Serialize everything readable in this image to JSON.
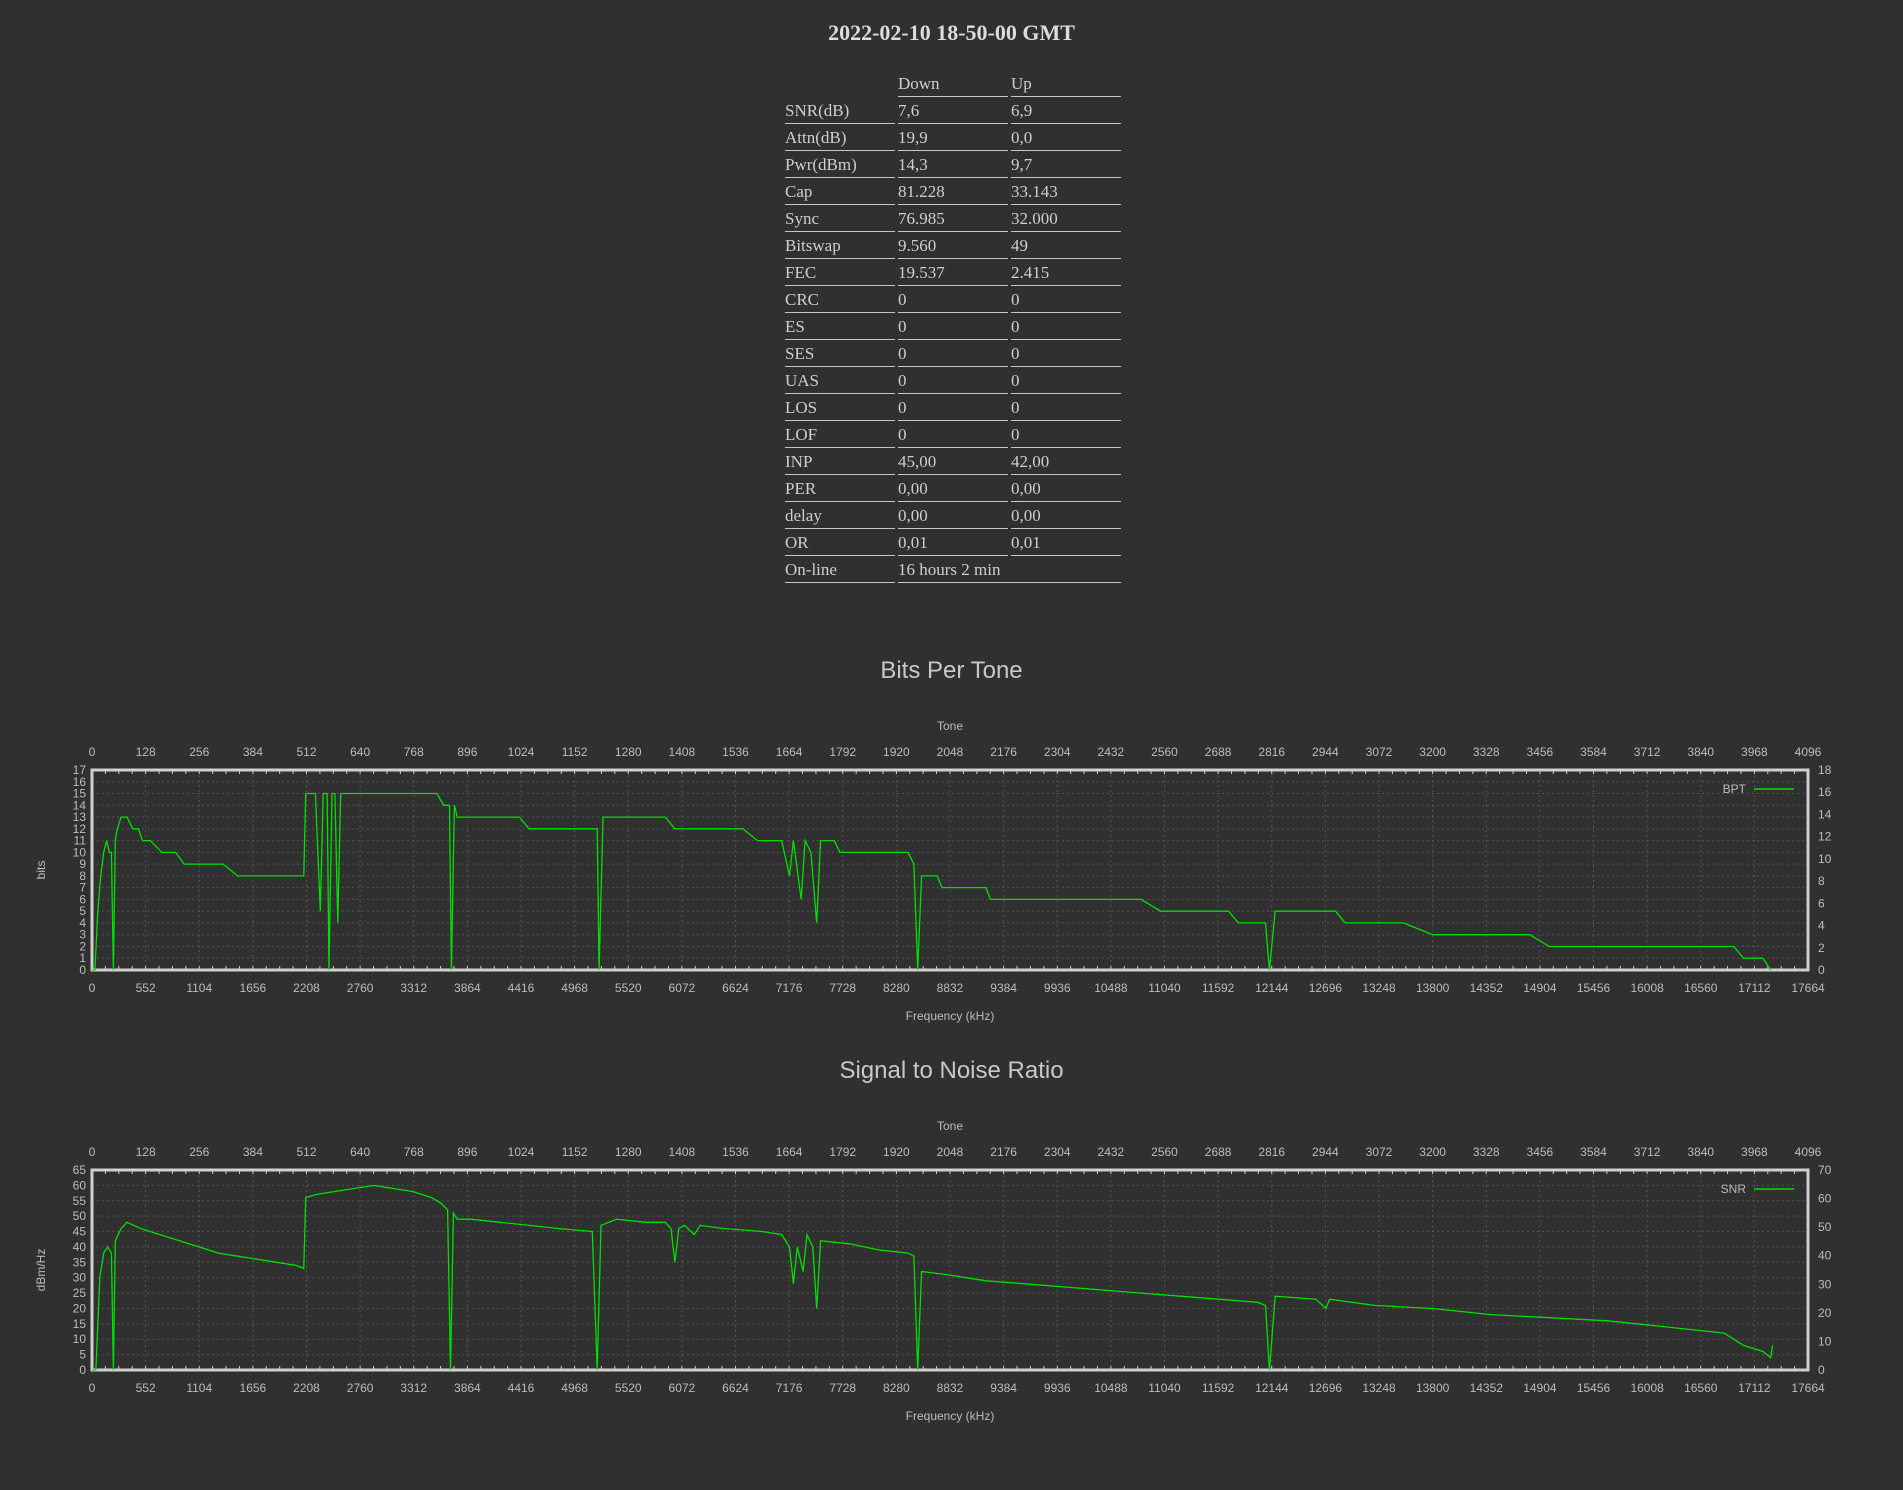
{
  "title": "2022-02-10 18-50-00 GMT",
  "stats": {
    "header": [
      "",
      "Down",
      "Up"
    ],
    "rows": [
      [
        "SNR(dB)",
        "7,6",
        "6,9"
      ],
      [
        "Attn(dB)",
        "19,9",
        "0,0"
      ],
      [
        "Pwr(dBm)",
        "14,3",
        "9,7"
      ],
      [
        "Cap",
        "81.228",
        "33.143"
      ],
      [
        "Sync",
        "76.985",
        "32.000"
      ],
      [
        "Bitswap",
        "9.560",
        "49"
      ],
      [
        "FEC",
        "19.537",
        "2.415"
      ],
      [
        "CRC",
        "0",
        "0"
      ],
      [
        "ES",
        "0",
        "0"
      ],
      [
        "SES",
        "0",
        "0"
      ],
      [
        "UAS",
        "0",
        "0"
      ],
      [
        "LOS",
        "0",
        "0"
      ],
      [
        "LOF",
        "0",
        "0"
      ],
      [
        "INP",
        "45,00",
        "42,00"
      ],
      [
        "PER",
        "0,00",
        "0,00"
      ],
      [
        "delay",
        "0,00",
        "0,00"
      ],
      [
        "OR",
        "0,01",
        "0,01"
      ]
    ],
    "online": [
      "On-line",
      "16 hours 2 min"
    ]
  },
  "line_color": "#00e000",
  "chart_data": [
    {
      "type": "line",
      "title": "Bits Per Tone",
      "top_axis_label": "Tone",
      "top_ticks": [
        0,
        128,
        256,
        384,
        512,
        640,
        768,
        896,
        1024,
        1152,
        1280,
        1408,
        1536,
        1664,
        1792,
        1920,
        2048,
        2176,
        2304,
        2432,
        2560,
        2688,
        2816,
        2944,
        3072,
        3200,
        3328,
        3456,
        3584,
        3712,
        3840,
        3968,
        4096
      ],
      "xlabel": "Frequency (kHz)",
      "x_ticks": [
        0,
        552,
        1104,
        1656,
        2208,
        2760,
        3312,
        3864,
        4416,
        4968,
        5520,
        6072,
        6624,
        7176,
        7728,
        8280,
        8832,
        9384,
        9936,
        10488,
        11040,
        11592,
        12144,
        12696,
        13248,
        13800,
        14352,
        14904,
        15456,
        16008,
        16560,
        17112,
        17664
      ],
      "xlim": [
        0,
        17664
      ],
      "ylabel": "bits",
      "ylim": [
        0,
        17
      ],
      "y_ticks": [
        0,
        1,
        2,
        3,
        4,
        5,
        6,
        7,
        8,
        9,
        10,
        11,
        12,
        13,
        14,
        15,
        16,
        17
      ],
      "y2lim": [
        0,
        18
      ],
      "y2_ticks": [
        0,
        2,
        4,
        6,
        8,
        10,
        12,
        14,
        16,
        18
      ],
      "legend": "top-right",
      "series": [
        {
          "name": "BPT",
          "points": [
            [
              0,
              0
            ],
            [
              30,
              0
            ],
            [
              60,
              5
            ],
            [
              90,
              8
            ],
            [
              120,
              10
            ],
            [
              150,
              11
            ],
            [
              180,
              10
            ],
            [
              200,
              10
            ],
            [
              220,
              0
            ],
            [
              240,
              11
            ],
            [
              260,
              12
            ],
            [
              300,
              13
            ],
            [
              360,
              13
            ],
            [
              420,
              12
            ],
            [
              480,
              12
            ],
            [
              520,
              11
            ],
            [
              600,
              11
            ],
            [
              720,
              10
            ],
            [
              860,
              10
            ],
            [
              950,
              9
            ],
            [
              1100,
              9
            ],
            [
              1200,
              9
            ],
            [
              1350,
              9
            ],
            [
              1500,
              8
            ],
            [
              1650,
              8
            ],
            [
              1800,
              8
            ],
            [
              1950,
              8
            ],
            [
              2100,
              8
            ],
            [
              2180,
              8
            ],
            [
              2200,
              15
            ],
            [
              2300,
              15
            ],
            [
              2350,
              5
            ],
            [
              2380,
              15
            ],
            [
              2420,
              15
            ],
            [
              2440,
              0
            ],
            [
              2470,
              15
            ],
            [
              2500,
              15
            ],
            [
              2530,
              4
            ],
            [
              2560,
              15
            ],
            [
              2700,
              15
            ],
            [
              3000,
              15
            ],
            [
              3300,
              15
            ],
            [
              3550,
              15
            ],
            [
              3620,
              14
            ],
            [
              3680,
              14
            ],
            [
              3700,
              0
            ],
            [
              3730,
              14
            ],
            [
              3760,
              13
            ],
            [
              3900,
              13
            ],
            [
              4200,
              13
            ],
            [
              4400,
              13
            ],
            [
              4500,
              12
            ],
            [
              4700,
              12
            ],
            [
              5000,
              12
            ],
            [
              5200,
              12
            ],
            [
              5220,
              0
            ],
            [
              5260,
              13
            ],
            [
              5500,
              13
            ],
            [
              5900,
              13
            ],
            [
              6000,
              12
            ],
            [
              6100,
              12
            ],
            [
              6200,
              12
            ],
            [
              6400,
              12
            ],
            [
              6700,
              12
            ],
            [
              6850,
              11
            ],
            [
              7100,
              11
            ],
            [
              7180,
              8
            ],
            [
              7220,
              11
            ],
            [
              7300,
              6
            ],
            [
              7340,
              11
            ],
            [
              7400,
              10
            ],
            [
              7460,
              4
            ],
            [
              7500,
              11
            ],
            [
              7640,
              11
            ],
            [
              7700,
              10
            ],
            [
              8100,
              10
            ],
            [
              8400,
              10
            ],
            [
              8460,
              9
            ],
            [
              8500,
              0
            ],
            [
              8540,
              8
            ],
            [
              8700,
              8
            ],
            [
              8750,
              7
            ],
            [
              9200,
              7
            ],
            [
              9250,
              6
            ],
            [
              9900,
              6
            ],
            [
              10200,
              6
            ],
            [
              10500,
              6
            ],
            [
              10800,
              6
            ],
            [
              11000,
              5
            ],
            [
              11700,
              5
            ],
            [
              11800,
              4
            ],
            [
              12080,
              4
            ],
            [
              12120,
              0
            ],
            [
              12180,
              5
            ],
            [
              12800,
              5
            ],
            [
              12900,
              4
            ],
            [
              13500,
              4
            ],
            [
              13800,
              3
            ],
            [
              14800,
              3
            ],
            [
              15000,
              2
            ],
            [
              15600,
              2
            ],
            [
              16500,
              2
            ],
            [
              16900,
              2
            ],
            [
              17000,
              1
            ],
            [
              17200,
              1
            ],
            [
              17280,
              0
            ]
          ]
        }
      ]
    },
    {
      "type": "line",
      "title": "Signal to Noise Ratio",
      "top_axis_label": "Tone",
      "top_ticks": [
        0,
        128,
        256,
        384,
        512,
        640,
        768,
        896,
        1024,
        1152,
        1280,
        1408,
        1536,
        1664,
        1792,
        1920,
        2048,
        2176,
        2304,
        2432,
        2560,
        2688,
        2816,
        2944,
        3072,
        3200,
        3328,
        3456,
        3584,
        3712,
        3840,
        3968,
        4096
      ],
      "xlabel": "Frequency (kHz)",
      "x_ticks": [
        0,
        552,
        1104,
        1656,
        2208,
        2760,
        3312,
        3864,
        4416,
        4968,
        5520,
        6072,
        6624,
        7176,
        7728,
        8280,
        8832,
        9384,
        9936,
        10488,
        11040,
        11592,
        12144,
        12696,
        13248,
        13800,
        14352,
        14904,
        15456,
        16008,
        16560,
        17112,
        17664
      ],
      "xlim": [
        0,
        17664
      ],
      "ylabel": "dBm/Hz",
      "ylim": [
        0,
        65
      ],
      "y_ticks": [
        0,
        5,
        10,
        15,
        20,
        25,
        30,
        35,
        40,
        45,
        50,
        55,
        60,
        65
      ],
      "y2lim": [
        0,
        70
      ],
      "y2_ticks": [
        0,
        10,
        20,
        30,
        40,
        50,
        60,
        70
      ],
      "legend": "top-right",
      "series": [
        {
          "name": "SNR",
          "points": [
            [
              0,
              0
            ],
            [
              40,
              0
            ],
            [
              80,
              30
            ],
            [
              120,
              38
            ],
            [
              160,
              40
            ],
            [
              200,
              38
            ],
            [
              220,
              0
            ],
            [
              240,
              42
            ],
            [
              300,
              46
            ],
            [
              360,
              48
            ],
            [
              500,
              46
            ],
            [
              700,
              44
            ],
            [
              900,
              42
            ],
            [
              1100,
              40
            ],
            [
              1300,
              38
            ],
            [
              1500,
              37
            ],
            [
              1700,
              36
            ],
            [
              1900,
              35
            ],
            [
              2100,
              34
            ],
            [
              2180,
              33
            ],
            [
              2200,
              56
            ],
            [
              2300,
              57
            ],
            [
              2500,
              58
            ],
            [
              2700,
              59
            ],
            [
              2900,
              60
            ],
            [
              3100,
              59
            ],
            [
              3300,
              58
            ],
            [
              3500,
              56
            ],
            [
              3600,
              54
            ],
            [
              3660,
              52
            ],
            [
              3690,
              0
            ],
            [
              3720,
              51
            ],
            [
              3760,
              49
            ],
            [
              3900,
              49
            ],
            [
              4200,
              48
            ],
            [
              4500,
              47
            ],
            [
              4800,
              46
            ],
            [
              5150,
              45
            ],
            [
              5200,
              0
            ],
            [
              5240,
              47
            ],
            [
              5400,
              49
            ],
            [
              5700,
              48
            ],
            [
              5900,
              48
            ],
            [
              5960,
              46
            ],
            [
              6000,
              35
            ],
            [
              6040,
              46
            ],
            [
              6100,
              47
            ],
            [
              6200,
              44
            ],
            [
              6260,
              47
            ],
            [
              6500,
              46
            ],
            [
              6900,
              45
            ],
            [
              7100,
              44
            ],
            [
              7180,
              40
            ],
            [
              7220,
              28
            ],
            [
              7260,
              40
            ],
            [
              7320,
              32
            ],
            [
              7360,
              44
            ],
            [
              7420,
              40
            ],
            [
              7460,
              20
            ],
            [
              7500,
              42
            ],
            [
              7800,
              41
            ],
            [
              8100,
              39
            ],
            [
              8400,
              38
            ],
            [
              8460,
              37
            ],
            [
              8500,
              0
            ],
            [
              8540,
              32
            ],
            [
              8800,
              31
            ],
            [
              9200,
              29
            ],
            [
              9600,
              28
            ],
            [
              10000,
              27
            ],
            [
              10400,
              26
            ],
            [
              10800,
              25
            ],
            [
              11200,
              24
            ],
            [
              11600,
              23
            ],
            [
              12000,
              22
            ],
            [
              12080,
              21
            ],
            [
              12120,
              0
            ],
            [
              12180,
              24
            ],
            [
              12600,
              23
            ],
            [
              12700,
              20
            ],
            [
              12740,
              23
            ],
            [
              13200,
              21
            ],
            [
              13800,
              20
            ],
            [
              14400,
              18
            ],
            [
              15000,
              17
            ],
            [
              15600,
              16
            ],
            [
              16200,
              14
            ],
            [
              16800,
              12
            ],
            [
              16900,
              10
            ],
            [
              17000,
              8
            ],
            [
              17200,
              6
            ],
            [
              17280,
              4
            ],
            [
              17300,
              8
            ]
          ]
        }
      ]
    }
  ]
}
